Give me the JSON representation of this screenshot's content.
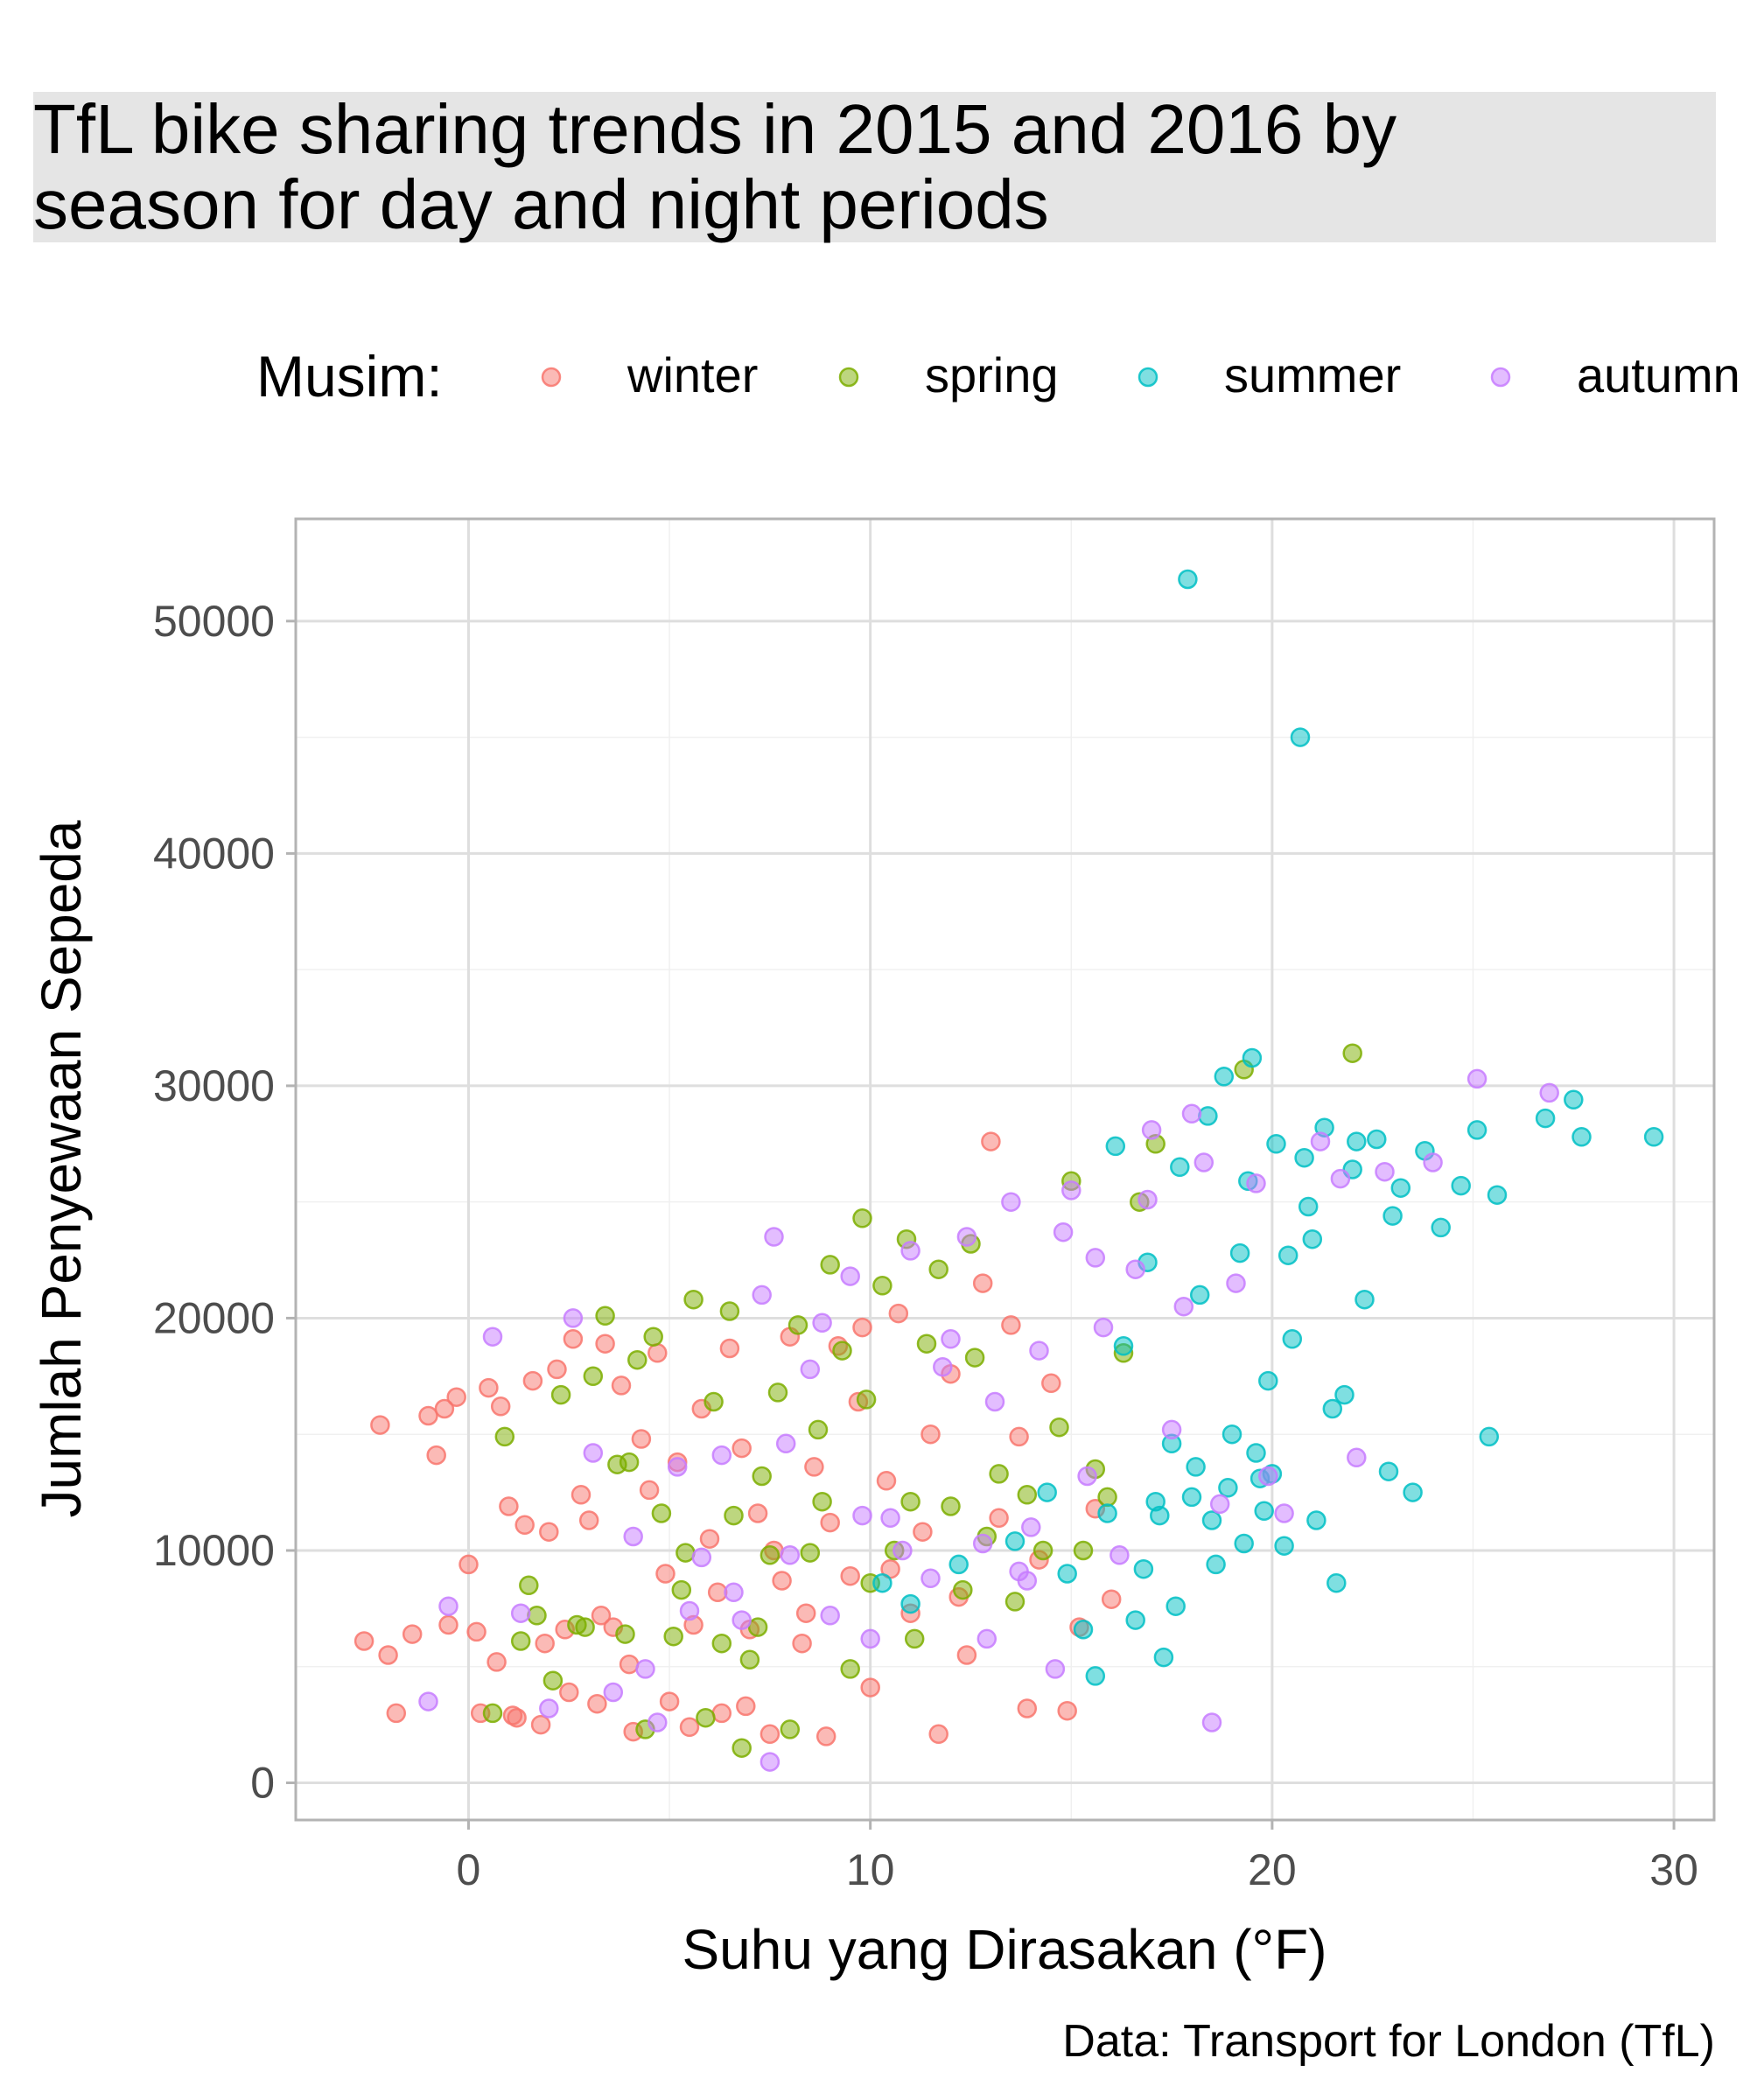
{
  "chart_data": {
    "type": "scatter",
    "title": "TfL bike sharing trends in 2015 and 2016 by\nseason for day and night periods",
    "xlabel": "Suhu yang Dirasakan (°F)",
    "ylabel": "Jumlah Penyewaan Sepeda",
    "caption": "Data: Transport for London (TfL)",
    "legend_title": "Musim:",
    "legend_position": "top",
    "xlim": [
      -4.3,
      31
    ],
    "ylim": [
      -1600,
      54400
    ],
    "x_ticks": [
      0,
      10,
      20,
      30
    ],
    "x_tick_labels": [
      "0",
      "10",
      "20",
      "30"
    ],
    "y_ticks": [
      0,
      10000,
      20000,
      30000,
      40000,
      50000
    ],
    "y_tick_labels": [
      "0",
      "10000",
      "20000",
      "30000",
      "40000",
      "50000"
    ],
    "grid": true,
    "point_alpha": 0.5,
    "series": [
      {
        "name": "winter",
        "color": "#F8766D",
        "points": [
          [
            -2.6,
            6100
          ],
          [
            -2.2,
            15400
          ],
          [
            -1.8,
            3000
          ],
          [
            -1.4,
            6400
          ],
          [
            -1.0,
            15800
          ],
          [
            -0.8,
            14100
          ],
          [
            -0.6,
            16100
          ],
          [
            -0.3,
            16600
          ],
          [
            0.0,
            9400
          ],
          [
            0.2,
            6500
          ],
          [
            0.3,
            3000
          ],
          [
            0.5,
            17000
          ],
          [
            0.8,
            16200
          ],
          [
            1.0,
            11900
          ],
          [
            1.2,
            2800
          ],
          [
            1.4,
            11100
          ],
          [
            1.6,
            17300
          ],
          [
            1.8,
            2500
          ],
          [
            2.0,
            10800
          ],
          [
            2.2,
            17800
          ],
          [
            2.4,
            6600
          ],
          [
            2.6,
            19100
          ],
          [
            2.8,
            12400
          ],
          [
            3.0,
            11300
          ],
          [
            3.2,
            3400
          ],
          [
            3.4,
            18900
          ],
          [
            3.6,
            6700
          ],
          [
            3.8,
            17100
          ],
          [
            4.0,
            5100
          ],
          [
            4.3,
            14800
          ],
          [
            4.5,
            12600
          ],
          [
            4.7,
            18500
          ],
          [
            5.0,
            3500
          ],
          [
            5.2,
            13800
          ],
          [
            5.5,
            2400
          ],
          [
            5.8,
            16100
          ],
          [
            6.0,
            10500
          ],
          [
            6.3,
            3000
          ],
          [
            6.5,
            18700
          ],
          [
            6.8,
            14400
          ],
          [
            7.0,
            6600
          ],
          [
            7.2,
            11600
          ],
          [
            7.5,
            2100
          ],
          [
            7.8,
            8700
          ],
          [
            8.0,
            19200
          ],
          [
            8.3,
            6000
          ],
          [
            8.6,
            13600
          ],
          [
            8.9,
            2000
          ],
          [
            9.2,
            18800
          ],
          [
            9.5,
            8900
          ],
          [
            9.8,
            19600
          ],
          [
            10.0,
            4100
          ],
          [
            10.4,
            13000
          ],
          [
            10.7,
            20200
          ],
          [
            11.0,
            7300
          ],
          [
            11.3,
            10800
          ],
          [
            11.7,
            2100
          ],
          [
            12.0,
            17600
          ],
          [
            12.4,
            5500
          ],
          [
            12.8,
            21500
          ],
          [
            13.0,
            27600
          ],
          [
            13.2,
            11400
          ],
          [
            13.5,
            19700
          ],
          [
            13.9,
            3200
          ],
          [
            14.2,
            9600
          ],
          [
            14.5,
            17200
          ],
          [
            14.9,
            3100
          ],
          [
            15.2,
            6700
          ],
          [
            15.6,
            11800
          ],
          [
            16.0,
            7900
          ],
          [
            -2.0,
            5500
          ],
          [
            -0.5,
            6800
          ],
          [
            0.7,
            5200
          ],
          [
            1.1,
            2900
          ],
          [
            1.9,
            6000
          ],
          [
            2.5,
            3900
          ],
          [
            3.3,
            7200
          ],
          [
            4.1,
            2200
          ],
          [
            4.9,
            9000
          ],
          [
            5.6,
            6800
          ],
          [
            6.2,
            8200
          ],
          [
            6.9,
            3300
          ],
          [
            7.6,
            10000
          ],
          [
            8.4,
            7300
          ],
          [
            9.0,
            11200
          ],
          [
            9.7,
            16400
          ],
          [
            10.5,
            9200
          ],
          [
            11.5,
            15000
          ],
          [
            12.2,
            8000
          ],
          [
            13.7,
            14900
          ]
        ]
      },
      {
        "name": "spring",
        "color": "#7CAE00",
        "points": [
          [
            0.6,
            3000
          ],
          [
            0.9,
            14900
          ],
          [
            1.3,
            6100
          ],
          [
            1.7,
            7200
          ],
          [
            2.1,
            4400
          ],
          [
            2.3,
            16700
          ],
          [
            2.7,
            6800
          ],
          [
            3.1,
            17500
          ],
          [
            3.4,
            20100
          ],
          [
            3.7,
            13700
          ],
          [
            3.9,
            6400
          ],
          [
            4.2,
            18200
          ],
          [
            4.4,
            2300
          ],
          [
            4.6,
            19200
          ],
          [
            4.8,
            11600
          ],
          [
            5.1,
            6300
          ],
          [
            5.3,
            8300
          ],
          [
            5.6,
            20800
          ],
          [
            5.9,
            2800
          ],
          [
            6.1,
            16400
          ],
          [
            6.3,
            6000
          ],
          [
            6.5,
            20300
          ],
          [
            6.8,
            1500
          ],
          [
            7.0,
            5300
          ],
          [
            7.3,
            13200
          ],
          [
            7.5,
            9800
          ],
          [
            7.7,
            16800
          ],
          [
            8.0,
            2300
          ],
          [
            8.2,
            19700
          ],
          [
            8.5,
            9900
          ],
          [
            8.7,
            15200
          ],
          [
            9.0,
            22300
          ],
          [
            9.3,
            18600
          ],
          [
            9.5,
            4900
          ],
          [
            9.8,
            24300
          ],
          [
            10.0,
            8600
          ],
          [
            10.3,
            21400
          ],
          [
            10.6,
            10000
          ],
          [
            10.9,
            23400
          ],
          [
            11.1,
            6200
          ],
          [
            11.4,
            18900
          ],
          [
            11.7,
            22100
          ],
          [
            12.0,
            11900
          ],
          [
            12.3,
            8300
          ],
          [
            12.6,
            18300
          ],
          [
            12.9,
            10600
          ],
          [
            13.2,
            13300
          ],
          [
            13.6,
            7800
          ],
          [
            13.9,
            12400
          ],
          [
            14.3,
            10000
          ],
          [
            14.7,
            15300
          ],
          [
            15.0,
            25900
          ],
          [
            15.3,
            10000
          ],
          [
            15.6,
            13500
          ],
          [
            15.9,
            12300
          ],
          [
            16.3,
            18500
          ],
          [
            16.7,
            25000
          ],
          [
            17.1,
            27500
          ],
          [
            19.3,
            30700
          ],
          [
            22.0,
            31400
          ],
          [
            1.5,
            8500
          ],
          [
            2.9,
            6700
          ],
          [
            4.0,
            13800
          ],
          [
            5.4,
            9900
          ],
          [
            6.6,
            11500
          ],
          [
            7.2,
            6700
          ],
          [
            8.8,
            12100
          ],
          [
            9.9,
            16500
          ],
          [
            11.0,
            12100
          ],
          [
            12.5,
            23200
          ]
        ]
      },
      {
        "name": "summer",
        "color": "#00BFC4",
        "points": [
          [
            10.3,
            8600
          ],
          [
            11.0,
            7700
          ],
          [
            12.2,
            9400
          ],
          [
            13.6,
            10400
          ],
          [
            14.4,
            12500
          ],
          [
            14.9,
            9000
          ],
          [
            15.3,
            6600
          ],
          [
            15.6,
            4600
          ],
          [
            15.9,
            11600
          ],
          [
            16.1,
            27400
          ],
          [
            16.3,
            18800
          ],
          [
            16.6,
            7000
          ],
          [
            16.9,
            22400
          ],
          [
            17.1,
            12100
          ],
          [
            17.3,
            5400
          ],
          [
            17.5,
            14600
          ],
          [
            17.7,
            26500
          ],
          [
            17.9,
            51800
          ],
          [
            18.0,
            12300
          ],
          [
            18.2,
            21000
          ],
          [
            18.4,
            28700
          ],
          [
            18.6,
            9400
          ],
          [
            18.8,
            30400
          ],
          [
            19.0,
            15000
          ],
          [
            19.2,
            22800
          ],
          [
            19.4,
            25900
          ],
          [
            19.5,
            31200
          ],
          [
            19.7,
            13100
          ],
          [
            19.9,
            17300
          ],
          [
            20.1,
            27500
          ],
          [
            20.3,
            10200
          ],
          [
            20.5,
            19100
          ],
          [
            20.7,
            45000
          ],
          [
            20.9,
            24800
          ],
          [
            21.1,
            11300
          ],
          [
            21.3,
            28200
          ],
          [
            21.6,
            8600
          ],
          [
            21.8,
            16700
          ],
          [
            22.0,
            26400
          ],
          [
            22.3,
            20800
          ],
          [
            22.6,
            27700
          ],
          [
            22.9,
            13400
          ],
          [
            23.2,
            25600
          ],
          [
            23.5,
            12500
          ],
          [
            23.8,
            27200
          ],
          [
            24.2,
            23900
          ],
          [
            24.7,
            25700
          ],
          [
            25.1,
            28100
          ],
          [
            25.4,
            14900
          ],
          [
            25.6,
            25300
          ],
          [
            26.8,
            28600
          ],
          [
            27.5,
            29400
          ],
          [
            27.7,
            27800
          ],
          [
            29.5,
            27800
          ],
          [
            16.8,
            9200
          ],
          [
            17.2,
            11500
          ],
          [
            17.6,
            7600
          ],
          [
            18.1,
            13600
          ],
          [
            18.5,
            11300
          ],
          [
            18.9,
            12700
          ],
          [
            19.3,
            10300
          ],
          [
            19.6,
            14200
          ],
          [
            19.8,
            11700
          ],
          [
            20.0,
            13300
          ],
          [
            20.4,
            22700
          ],
          [
            20.8,
            26900
          ],
          [
            21.0,
            23400
          ],
          [
            21.5,
            16100
          ],
          [
            22.1,
            27600
          ],
          [
            23.0,
            24400
          ]
        ]
      },
      {
        "name": "autumn",
        "color": "#C77CFF",
        "points": [
          [
            -1.0,
            3500
          ],
          [
            -0.5,
            7600
          ],
          [
            0.6,
            19200
          ],
          [
            1.3,
            7300
          ],
          [
            2.0,
            3200
          ],
          [
            2.6,
            20000
          ],
          [
            3.1,
            14200
          ],
          [
            3.6,
            3900
          ],
          [
            4.1,
            10600
          ],
          [
            4.7,
            2600
          ],
          [
            5.2,
            13600
          ],
          [
            5.8,
            9700
          ],
          [
            6.3,
            14100
          ],
          [
            6.8,
            7000
          ],
          [
            7.3,
            21000
          ],
          [
            7.5,
            900
          ],
          [
            7.6,
            23500
          ],
          [
            8.0,
            9800
          ],
          [
            8.5,
            17800
          ],
          [
            9.0,
            7200
          ],
          [
            9.5,
            21800
          ],
          [
            10.0,
            6200
          ],
          [
            10.5,
            11400
          ],
          [
            11.0,
            22900
          ],
          [
            11.5,
            8800
          ],
          [
            12.0,
            19100
          ],
          [
            12.4,
            23500
          ],
          [
            12.8,
            10300
          ],
          [
            13.1,
            16400
          ],
          [
            13.5,
            25000
          ],
          [
            13.9,
            8700
          ],
          [
            14.2,
            18600
          ],
          [
            14.6,
            4900
          ],
          [
            15.0,
            25500
          ],
          [
            15.4,
            13200
          ],
          [
            15.8,
            19600
          ],
          [
            16.2,
            9800
          ],
          [
            16.6,
            22100
          ],
          [
            17.0,
            28100
          ],
          [
            17.5,
            15200
          ],
          [
            18.0,
            28800
          ],
          [
            18.3,
            26700
          ],
          [
            18.5,
            2600
          ],
          [
            18.7,
            12000
          ],
          [
            19.1,
            21500
          ],
          [
            19.6,
            25800
          ],
          [
            20.3,
            11600
          ],
          [
            21.2,
            27600
          ],
          [
            22.1,
            14000
          ],
          [
            22.8,
            26300
          ],
          [
            24.0,
            26700
          ],
          [
            25.1,
            30300
          ],
          [
            26.9,
            29700
          ],
          [
            14.8,
            23700
          ],
          [
            13.7,
            9100
          ],
          [
            12.9,
            6200
          ],
          [
            11.8,
            17900
          ],
          [
            10.8,
            10000
          ],
          [
            9.8,
            11500
          ],
          [
            8.8,
            19800
          ],
          [
            7.9,
            14600
          ],
          [
            6.6,
            8200
          ],
          [
            5.5,
            7400
          ],
          [
            4.4,
            4900
          ],
          [
            15.6,
            22600
          ],
          [
            16.9,
            25100
          ],
          [
            17.8,
            20500
          ],
          [
            19.9,
            13200
          ],
          [
            21.7,
            26000
          ],
          [
            14.0,
            11000
          ]
        ]
      }
    ]
  }
}
